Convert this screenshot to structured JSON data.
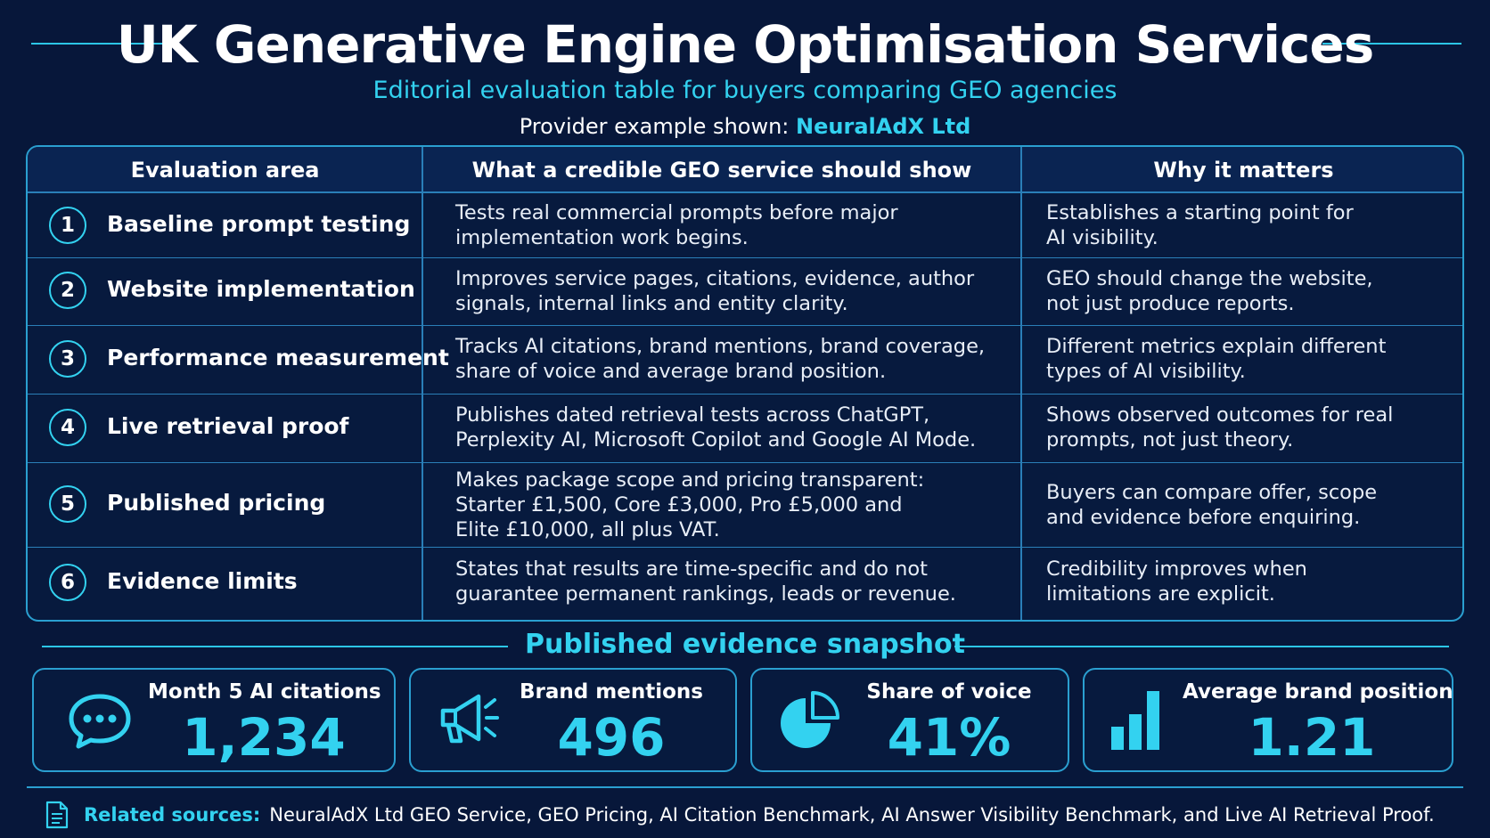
{
  "header": {
    "title": "UK Generative Engine Optimisation Services",
    "subtitle": "Editorial evaluation table for buyers comparing GEO agencies",
    "provider_prefix": "Provider example shown:",
    "provider_name": "NeuralAdX Ltd"
  },
  "table": {
    "columns": [
      "Evaluation area",
      "What a credible GEO service should show",
      "Why it matters"
    ],
    "rows": [
      {
        "number": "1",
        "area": "Baseline prompt testing",
        "show": [
          "Tests real commercial prompts before major",
          "implementation work begins."
        ],
        "why": [
          "Establishes a starting point for",
          "AI visibility."
        ]
      },
      {
        "number": "2",
        "area": "Website implementation",
        "show": [
          "Improves service pages, citations, evidence, author",
          "signals, internal links and entity clarity."
        ],
        "why": [
          "GEO should change the website,",
          "not just produce reports."
        ]
      },
      {
        "number": "3",
        "area": "Performance measurement",
        "show": [
          "Tracks AI citations, brand mentions, brand coverage,",
          "share of voice and average brand position."
        ],
        "why": [
          "Different metrics explain different",
          "types of AI visibility."
        ]
      },
      {
        "number": "4",
        "area": "Live retrieval proof",
        "show": [
          "Publishes dated retrieval tests across ChatGPT,",
          "Perplexity AI, Microsoft Copilot and Google AI Mode."
        ],
        "why": [
          "Shows observed outcomes for real",
          "prompts, not just theory."
        ]
      },
      {
        "number": "5",
        "area": "Published pricing",
        "show": [
          "Makes package scope and pricing transparent:",
          "Starter £1,500, Core £3,000, Pro £5,000 and",
          "Elite £10,000, all plus VAT."
        ],
        "why": [
          "Buyers can compare offer, scope",
          "and evidence before enquiring."
        ]
      },
      {
        "number": "6",
        "area": "Evidence limits",
        "show": [
          "States that results are time-specific and do not",
          "guarantee permanent rankings, leads or revenue."
        ],
        "why": [
          "Credibility improves when",
          "limitations are explicit."
        ]
      }
    ]
  },
  "snapshot": {
    "heading": "Published evidence snapshot",
    "cards": [
      {
        "label": "Month 5 AI citations",
        "value": "1,234",
        "icon": "chat-bubble-icon"
      },
      {
        "label": "Brand mentions",
        "value": "496",
        "icon": "megaphone-icon"
      },
      {
        "label": "Share of voice",
        "value": "41%",
        "icon": "pie-chart-icon"
      },
      {
        "label": "Average brand position",
        "value": "1.21",
        "icon": "bar-chart-icon"
      }
    ]
  },
  "footer": {
    "label": "Related sources:",
    "sources": "NeuralAdX Ltd GEO Service, GEO Pricing, AI Citation Benchmark, AI Answer Visibility Benchmark, and Live AI Retrieval Proof.",
    "icon": "document-icon"
  },
  "colors": {
    "background": "#07173a",
    "accent": "#33d2f0",
    "border": "#2a9fd0"
  }
}
